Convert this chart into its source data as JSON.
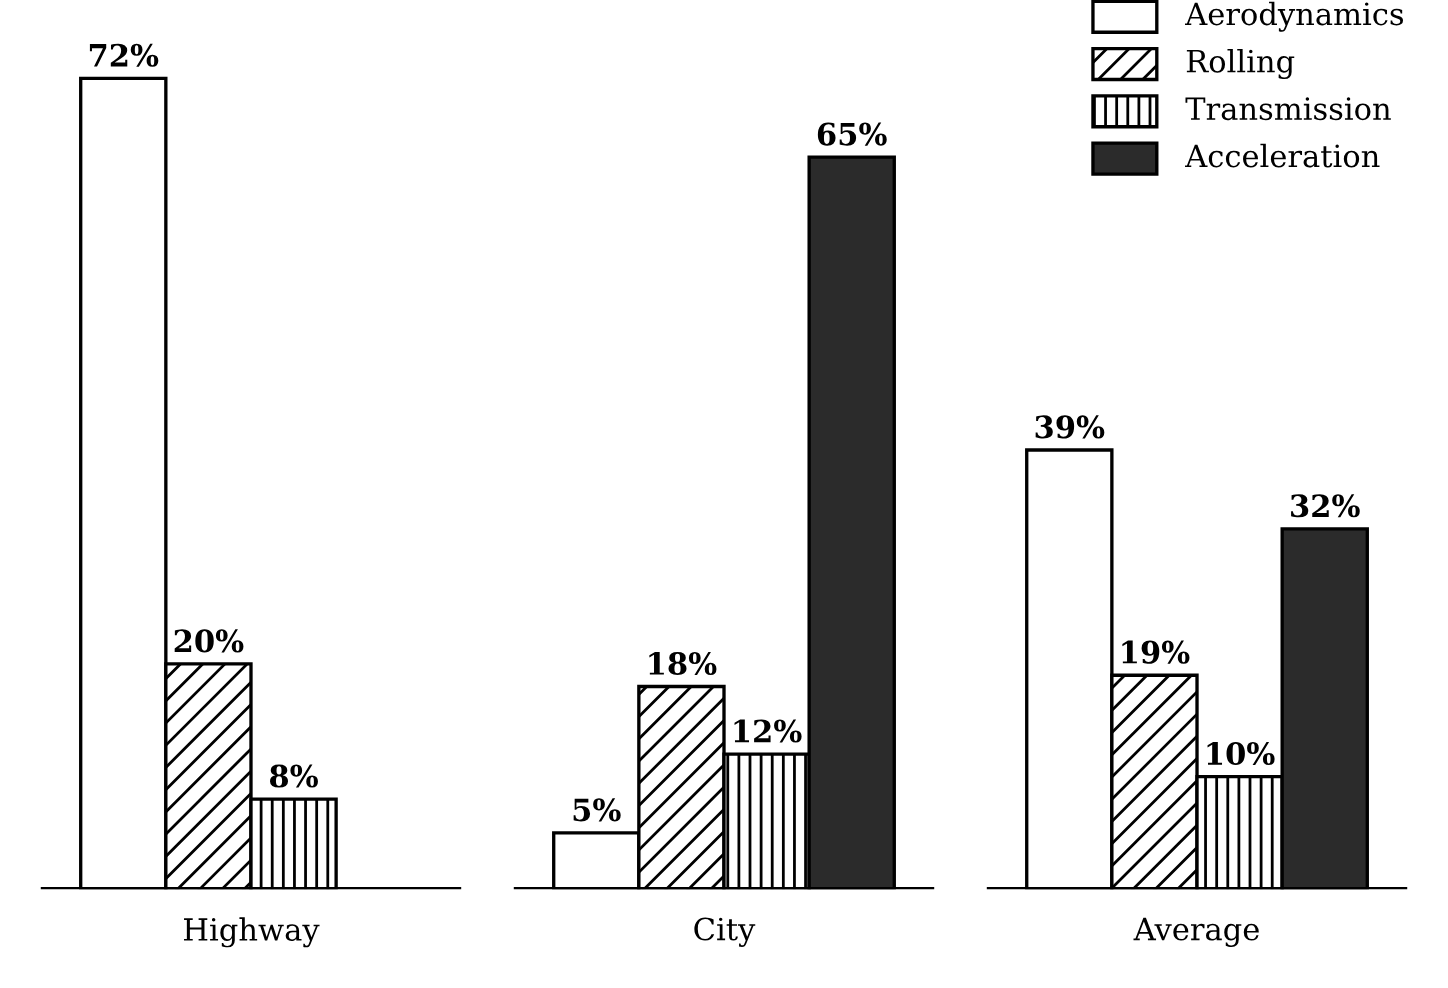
{
  "chart_data": {
    "type": "bar",
    "categories": [
      "Highway",
      "City",
      "Average"
    ],
    "series": [
      {
        "name": "Aerodynamics",
        "color": "#ffffff",
        "values": [
          72,
          5,
          39
        ],
        "value_labels": [
          "72%",
          "5%",
          "39%"
        ]
      },
      {
        "name": "Rolling",
        "color": "#ffffff",
        "values": [
          20,
          18,
          19
        ],
        "value_labels": [
          "20%",
          "18%",
          "19%"
        ]
      },
      {
        "name": "Transmission",
        "color": "#ffffff",
        "values": [
          8,
          12,
          10
        ],
        "value_labels": [
          "8%",
          "12%",
          "10%"
        ]
      },
      {
        "name": "Acceleration",
        "color": "#2b2b2b",
        "values": [
          null,
          65,
          32
        ],
        "value_labels": [
          null,
          "65%",
          "32%"
        ]
      }
    ],
    "legend": "top right"
  }
}
